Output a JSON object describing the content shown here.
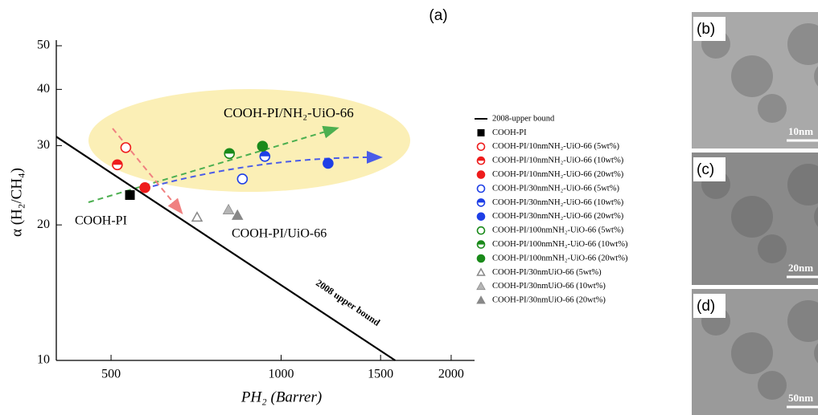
{
  "label": "(a)",
  "chart_data": {
    "type": "scatter",
    "xlabel": "PH₂ (Barrer)",
    "ylabel": "α (H₂/CH₄)",
    "log_x": true,
    "log_y": true,
    "xlim": [
      400,
      2200
    ],
    "xticks": [
      500,
      1000,
      1500,
      2000
    ],
    "ylim": [
      10,
      50
    ],
    "yticks": [
      10,
      20,
      30,
      40,
      50
    ],
    "annotations": [
      "COOH-PI/NH₂-UiO-66",
      "COOH-PI",
      "COOH-PI/UiO-66",
      "2008 upper bound"
    ],
    "series": [
      {
        "name": "2008-upper bound",
        "kind": "line",
        "color": "#000000",
        "x": [
          400,
          1592
        ],
        "y": [
          31.4,
          10
        ]
      },
      {
        "name": "COOH-PI",
        "marker": "square",
        "fill": "full",
        "color": "#000000",
        "x": [
          540
        ],
        "y": [
          23.3
        ]
      },
      {
        "name": "COOH-PI/10nmNH₂-UiO-66 (5wt%)",
        "marker": "circle",
        "fill": "open",
        "color": "#ee1c1c",
        "x": [
          531
        ],
        "y": [
          29.7
        ]
      },
      {
        "name": "COOH-PI/10nmNH₂-UiO-66 (10wt%)",
        "marker": "circle",
        "fill": "half",
        "color": "#ee1c1c",
        "x": [
          513
        ],
        "y": [
          27.2
        ]
      },
      {
        "name": "COOH-PI/10nmNH₂-UiO-66 (20wt%)",
        "marker": "circle",
        "fill": "full",
        "color": "#ee1c1c",
        "x": [
          574
        ],
        "y": [
          24.2
        ]
      },
      {
        "name": "COOH-PI/30nmNH₂-UiO-66 (5wt%)",
        "marker": "circle",
        "fill": "open",
        "color": "#1e3fe6",
        "x": [
          854
        ],
        "y": [
          25.3
        ]
      },
      {
        "name": "COOH-PI/30nmNH₂-UiO-66 (10wt%)",
        "marker": "circle",
        "fill": "half",
        "color": "#1e3fe6",
        "x": [
          936
        ],
        "y": [
          28.4
        ]
      },
      {
        "name": "COOH-PI/30nmNH₂-UiO-66 (20wt%)",
        "marker": "circle",
        "fill": "full",
        "color": "#1e3fe6",
        "x": [
          1211
        ],
        "y": [
          27.4
        ]
      },
      {
        "name": "COOH-PI/100nmNH₂-UiO-66 (5wt%)",
        "marker": "circle",
        "fill": "open",
        "color": "#1a8a1a",
        "x": [],
        "y": []
      },
      {
        "name": "COOH-PI/100nmNH₂-UiO-66 (10wt%)",
        "marker": "circle",
        "fill": "half",
        "color": "#1a8a1a",
        "x": [
          810
        ],
        "y": [
          28.8
        ]
      },
      {
        "name": "COOH-PI/100nmNH₂-UiO-66 (20wt%)",
        "marker": "circle",
        "fill": "full",
        "color": "#1a8a1a",
        "x": [
          927
        ],
        "y": [
          29.9
        ]
      },
      {
        "name": "COOH-PI/30nmUiO-66 (5wt%)",
        "marker": "triangle",
        "fill": "open",
        "color": "#888888",
        "x": [
          710
        ],
        "y": [
          20.8
        ]
      },
      {
        "name": "COOH-PI/30nmUiO-66 (10wt%)",
        "marker": "triangle",
        "fill": "half",
        "color": "#888888",
        "x": [
          807
        ],
        "y": [
          21.6
        ]
      },
      {
        "name": "COOH-PI/30nmUiO-66 (20wt%)",
        "marker": "triangle",
        "fill": "full",
        "color": "#888888",
        "x": [
          837
        ],
        "y": [
          21.0
        ]
      }
    ]
  },
  "panels": [
    {
      "label": "(b)",
      "scale": "10nm"
    },
    {
      "label": "(c)",
      "scale": "20nm"
    },
    {
      "label": "(d)",
      "scale": "50nm"
    }
  ]
}
